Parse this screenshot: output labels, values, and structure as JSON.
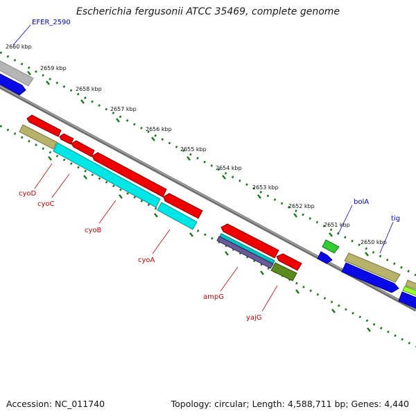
{
  "title": "Escherichia fergusonii ATCC 35469, complete genome",
  "footer": {
    "accession": "Accession: NC_011740",
    "summary": "Topology: circular; Length: 4,588,711 bp; Genes: 4,440"
  },
  "scale": {
    "ticks": [
      {
        "label": "2660 kbp"
      },
      {
        "label": "2659 kbp"
      },
      {
        "label": "2658 kbp"
      },
      {
        "label": "2657 kbp"
      },
      {
        "label": "2656 kbp"
      },
      {
        "label": "2655 kbp"
      },
      {
        "label": "2654 kbp"
      },
      {
        "label": "2653 kbp"
      },
      {
        "label": "2652 kbp"
      },
      {
        "label": "2651 kbp"
      },
      {
        "label": "2650 kbp"
      }
    ]
  },
  "genes": {
    "forward": [
      {
        "label": "EFER_2590",
        "color": "#0000cc"
      },
      {
        "label": "bolA",
        "color": "#0000cc"
      },
      {
        "label": "tig",
        "color": "#0000cc"
      }
    ],
    "reverse": [
      {
        "label": "cyoD",
        "color": "#cc0000"
      },
      {
        "label": "cyoC",
        "color": "#cc0000"
      },
      {
        "label": "cyoB",
        "color": "#cc0000"
      },
      {
        "label": "cyoA",
        "color": "#cc0000"
      },
      {
        "label": "ampG",
        "color": "#cc0000"
      },
      {
        "label": "yajG",
        "color": "#cc0000"
      }
    ]
  },
  "colors": {
    "backbone": "#7a7a7a",
    "cds": "#ee0000",
    "forward_cds": "#0000dd",
    "reverse_cds": "#ee0000",
    "tick": "#1a7a1a",
    "cyan_feature": "#00e5e5",
    "khaki_feature": "#b8b36a",
    "gray_feature": "#b0b0b0",
    "green_feature": "#33cc33",
    "olive_feature": "#5c8a1e",
    "lime_feature": "#99ff33",
    "purple_feature": "#6a5a99"
  }
}
